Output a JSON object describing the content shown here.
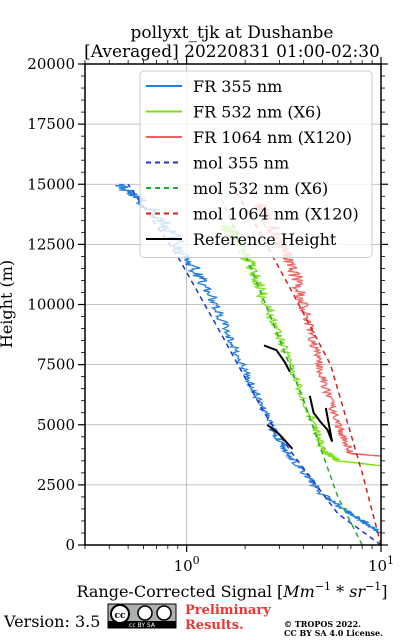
{
  "chart_data": {
    "type": "line",
    "title": "pollyxt_tjk at Dushanbe",
    "subtitle": "[Averaged] 20220831 01:00-02:30",
    "xlabel_main": "Range-Corrected Signal [",
    "xlabel_unit": "Mm",
    "xlabel_exp1": "−1",
    "xlabel_mid": " * sr",
    "xlabel_exp2": "−1",
    "xlabel_end": "]",
    "ylabel": "Height (m)",
    "xscale": "log",
    "xlim": [
      0.3,
      10
    ],
    "ylim": [
      0,
      20000
    ],
    "grid": true,
    "legend_position": "top-right",
    "x_ticks": [
      {
        "value": 1,
        "base": "10",
        "exp": "0"
      },
      {
        "value": 10,
        "base": "10",
        "exp": "1"
      }
    ],
    "y_ticks": [
      0,
      2500,
      5000,
      7500,
      10000,
      12500,
      15000,
      17500,
      20000
    ],
    "series": [
      {
        "name": "FR 355 nm",
        "color": "#1f7ee0",
        "style": "solid",
        "noisy": true,
        "points": [
          [
            10.0,
            500
          ],
          [
            7.0,
            1300
          ],
          [
            5.0,
            2100
          ],
          [
            3.5,
            3600
          ],
          [
            2.8,
            4700
          ],
          [
            2.2,
            6500
          ],
          [
            1.7,
            8500
          ],
          [
            1.3,
            10500
          ],
          [
            1.0,
            12000
          ],
          [
            0.7,
            13800
          ],
          [
            0.45,
            15000
          ]
        ]
      },
      {
        "name": "FR 532 nm (X6)",
        "color": "#7ee01a",
        "style": "solid",
        "noisy": true,
        "points": [
          [
            10.0,
            3300
          ],
          [
            6.0,
            3500
          ],
          [
            5.0,
            4000
          ],
          [
            4.5,
            5000
          ],
          [
            3.6,
            7000
          ],
          [
            2.9,
            9000
          ],
          [
            2.3,
            11000
          ],
          [
            1.9,
            12500
          ],
          [
            1.6,
            13300
          ]
        ]
      },
      {
        "name": "FR 1064 nm (X120)",
        "color": "#f06060",
        "style": "solid",
        "noisy": true,
        "points": [
          [
            10.0,
            3700
          ],
          [
            7.0,
            3800
          ],
          [
            6.0,
            5000
          ],
          [
            5.0,
            7000
          ],
          [
            4.3,
            9000
          ],
          [
            3.7,
            11000
          ],
          [
            3.1,
            12500
          ],
          [
            2.3,
            14200
          ]
        ]
      },
      {
        "name": "mol 355 nm",
        "color": "#2233cc",
        "style": "dashed",
        "points": [
          [
            10.0,
            0
          ],
          [
            6.0,
            1300
          ],
          [
            3.5,
            3800
          ],
          [
            2.5,
            5500
          ],
          [
            1.5,
            8800
          ],
          [
            0.9,
            12000
          ],
          [
            0.5,
            15000
          ]
        ]
      },
      {
        "name": "mol 532 nm (X6)",
        "color": "#22aa33",
        "style": "dashed",
        "points": [
          [
            8.0,
            0
          ],
          [
            6.0,
            2000
          ],
          [
            4.0,
            6000
          ],
          [
            2.7,
            9500
          ],
          [
            1.8,
            13000
          ],
          [
            1.4,
            15000
          ]
        ]
      },
      {
        "name": "mol 1064 nm (X120)",
        "color": "#cc2222",
        "style": "dashed",
        "points": [
          [
            10.0,
            0
          ],
          [
            8.0,
            3000
          ],
          [
            5.5,
            7500
          ],
          [
            3.5,
            10500
          ],
          [
            2.2,
            13500
          ],
          [
            1.7,
            15000
          ]
        ]
      },
      {
        "name": "Reference Height",
        "color": "#000000",
        "style": "solid",
        "points": [
          [
            2.6,
            5000
          ],
          [
            3.0,
            4600
          ],
          [
            3.5,
            4000
          ],
          [
            3.1,
            7600
          ],
          [
            3.4,
            8600
          ],
          [
            3.7,
            7200
          ],
          [
            4.0,
            6600
          ],
          [
            4.5,
            5000
          ],
          [
            5.2,
            4500
          ],
          [
            5.5,
            4200
          ],
          [
            5.2,
            5600
          ]
        ],
        "segments": [
          [
            [
              2.6,
              5000
            ],
            [
              3.0,
              4600
            ],
            [
              3.5,
              4000
            ]
          ],
          [
            [
              2.5,
              8300
            ],
            [
              2.9,
              8100
            ],
            [
              3.2,
              7600
            ],
            [
              3.4,
              7200
            ]
          ],
          [
            [
              4.3,
              6200
            ],
            [
              4.5,
              5500
            ],
            [
              4.9,
              5100
            ],
            [
              5.3,
              4800
            ],
            [
              5.6,
              4300
            ],
            [
              5.2,
              5700
            ]
          ]
        ]
      }
    ]
  },
  "footer": {
    "version_label": "Version: 3.5",
    "license_badge": "cc BY SA",
    "preliminary_line1": "Preliminary",
    "preliminary_line2": "Results.",
    "copyright_line1": "© TROPOS 2022.",
    "copyright_line2": "CC BY SA 4.0 License."
  }
}
